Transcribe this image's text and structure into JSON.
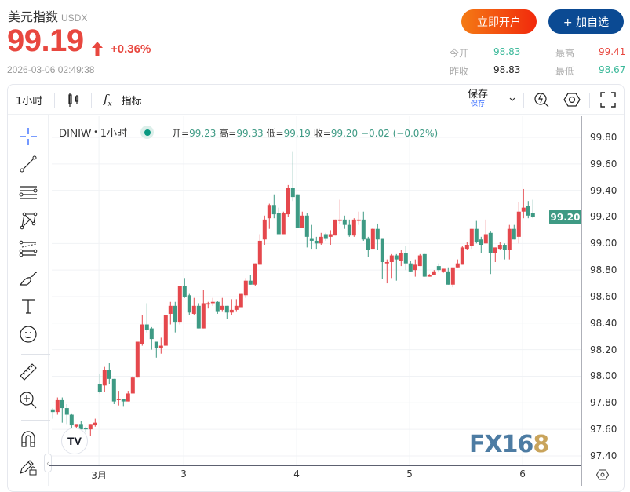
{
  "header": {
    "title": "美元指数",
    "symbol": "USDX",
    "price": "99.19",
    "direction": "up",
    "change_pct": "+0.36%",
    "timestamp": "2026-03-06 02:49:38"
  },
  "buttons": {
    "open_account": "立即开户",
    "add_watchlist": "+ 加自选"
  },
  "stats": {
    "open_label": "今开",
    "open": "98.83",
    "prev_close_label": "昨收",
    "prev_close": "98.83",
    "high_label": "最高",
    "high": "99.41",
    "low_label": "最低",
    "low": "98.67"
  },
  "toolbar": {
    "interval": "1小时",
    "chart_type_icon": "candles-icon",
    "indicators": "指标",
    "save": "保存",
    "save_sub": "保存"
  },
  "left_tools": [
    "crosshair-icon",
    "trend-line-icon",
    "horizontal-lines-icon",
    "pattern-icon",
    "fib-icon",
    "brush-icon",
    "text-icon",
    "emoji-icon",
    "ruler-icon",
    "zoom-in-icon",
    "magnet-icon",
    "lock-drawing-icon"
  ],
  "legend": {
    "symbol": "DINIW",
    "interval": "1小时",
    "open_label": "开=",
    "open": "99.23",
    "high_label": "高=",
    "high": "99.33",
    "low_label": "低=",
    "low": "99.19",
    "close_label": "收=",
    "close": "99.20",
    "change": "−0.02 (−0.02%)"
  },
  "colors": {
    "up": "#e5484d",
    "down": "#3e9a84",
    "price_up": "#e8473f",
    "accent_blue": "#0b4a93"
  },
  "watermark": {
    "text_a": "FX16",
    "text_b": "8"
  },
  "chart_data": {
    "type": "candlestick",
    "ylim": [
      97.4,
      99.8
    ],
    "y_ticks": [
      "99.80",
      "99.60",
      "99.40",
      "99.20",
      "99.00",
      "98.80",
      "98.60",
      "98.40",
      "98.20",
      "98.00",
      "97.80",
      "97.60",
      "97.40"
    ],
    "x_ticks": [
      "3月",
      "3",
      "4",
      "5",
      "6"
    ],
    "last_price": "99.20",
    "grid": true,
    "candles_ohlc": [
      [
        97.75,
        97.76,
        97.68,
        97.73
      ],
      [
        97.73,
        97.84,
        97.71,
        97.82
      ],
      [
        97.82,
        97.84,
        97.65,
        97.76
      ],
      [
        97.76,
        97.79,
        97.64,
        97.71
      ],
      [
        97.71,
        97.72,
        97.61,
        97.63
      ],
      [
        97.62,
        97.64,
        97.61,
        97.64
      ],
      [
        97.64,
        97.66,
        97.6,
        97.6
      ],
      [
        97.61,
        97.62,
        97.58,
        97.6
      ],
      [
        97.6,
        97.64,
        97.55,
        97.64
      ],
      [
        97.63,
        97.68,
        97.62,
        97.65
      ],
      [
        97.94,
        98.02,
        97.87,
        97.88
      ],
      [
        97.93,
        98.07,
        97.88,
        98.05
      ],
      [
        98.05,
        98.1,
        97.94,
        97.98
      ],
      [
        97.98,
        97.98,
        97.79,
        97.81
      ],
      [
        97.82,
        97.89,
        97.78,
        97.83
      ],
      [
        97.83,
        97.83,
        97.77,
        97.81
      ],
      [
        97.81,
        97.89,
        97.81,
        97.87
      ],
      [
        97.87,
        98.0,
        97.87,
        97.99
      ],
      [
        97.99,
        98.26,
        97.99,
        98.26
      ],
      [
        98.24,
        98.46,
        98.23,
        98.39
      ],
      [
        98.39,
        98.55,
        98.33,
        98.35
      ],
      [
        98.36,
        98.37,
        98.2,
        98.28
      ],
      [
        98.26,
        98.26,
        98.14,
        98.21
      ],
      [
        98.21,
        98.29,
        98.17,
        98.23
      ],
      [
        98.23,
        98.46,
        98.23,
        98.46
      ],
      [
        98.47,
        98.56,
        98.39,
        98.53
      ],
      [
        98.53,
        98.56,
        98.33,
        98.41
      ],
      [
        98.41,
        98.68,
        98.39,
        98.68
      ],
      [
        98.68,
        98.74,
        98.59,
        98.6
      ],
      [
        98.61,
        98.62,
        98.46,
        98.48
      ],
      [
        98.47,
        98.59,
        98.46,
        98.53
      ],
      [
        98.53,
        98.55,
        98.36,
        98.36
      ],
      [
        98.36,
        98.65,
        98.36,
        98.55
      ],
      [
        98.54,
        98.56,
        98.51,
        98.55
      ],
      [
        98.55,
        98.59,
        98.53,
        98.56
      ],
      [
        98.56,
        98.57,
        98.47,
        98.49
      ],
      [
        98.5,
        98.59,
        98.49,
        98.53
      ],
      [
        98.53,
        98.53,
        98.43,
        98.48
      ],
      [
        98.48,
        98.58,
        98.46,
        98.5
      ],
      [
        98.5,
        98.58,
        98.49,
        98.53
      ],
      [
        98.52,
        98.62,
        98.52,
        98.62
      ],
      [
        98.61,
        98.74,
        98.59,
        98.72
      ],
      [
        98.72,
        98.76,
        98.69,
        98.69
      ],
      [
        98.69,
        98.85,
        98.68,
        98.85
      ],
      [
        98.84,
        99.07,
        98.84,
        99.02
      ],
      [
        99.03,
        99.21,
        98.99,
        99.18
      ],
      [
        99.19,
        99.3,
        99.11,
        99.29
      ],
      [
        99.29,
        99.37,
        99.19,
        99.22
      ],
      [
        99.23,
        99.27,
        99.07,
        99.07
      ],
      [
        99.07,
        99.24,
        99.07,
        99.23
      ],
      [
        99.22,
        99.44,
        99.2,
        99.42
      ],
      [
        99.42,
        99.69,
        99.32,
        99.35
      ],
      [
        99.37,
        99.37,
        99.12,
        99.12
      ],
      [
        99.12,
        99.24,
        99.12,
        99.21
      ],
      [
        99.21,
        99.23,
        98.97,
        99.05
      ],
      [
        99.04,
        99.14,
        98.96,
        99.02
      ],
      [
        99.02,
        99.05,
        98.96,
        99.0
      ],
      [
        99.0,
        99.08,
        98.99,
        99.05
      ],
      [
        99.07,
        99.08,
        99.02,
        99.04
      ],
      [
        99.05,
        99.1,
        98.99,
        99.07
      ],
      [
        99.06,
        99.18,
        99.06,
        99.18
      ],
      [
        99.17,
        99.33,
        99.15,
        99.18
      ],
      [
        99.18,
        99.21,
        99.11,
        99.14
      ],
      [
        99.14,
        99.18,
        99.05,
        99.06
      ],
      [
        99.06,
        99.19,
        99.05,
        99.18
      ],
      [
        99.17,
        99.24,
        99.14,
        99.18
      ],
      [
        99.18,
        99.24,
        99.02,
        99.03
      ],
      [
        99.04,
        99.05,
        98.9,
        98.95
      ],
      [
        98.96,
        99.12,
        98.96,
        99.11
      ],
      [
        99.11,
        99.15,
        98.95,
        99.03
      ],
      [
        99.04,
        99.04,
        98.73,
        98.86
      ],
      [
        98.85,
        98.88,
        98.7,
        98.86
      ],
      [
        98.86,
        98.92,
        98.74,
        98.91
      ],
      [
        98.91,
        98.92,
        98.72,
        98.88
      ],
      [
        98.87,
        98.95,
        98.83,
        98.93
      ],
      [
        98.93,
        98.98,
        98.8,
        98.85
      ],
      [
        98.85,
        98.87,
        98.79,
        98.79
      ],
      [
        98.8,
        98.88,
        98.75,
        98.84
      ],
      [
        98.83,
        98.92,
        98.83,
        98.91
      ],
      [
        98.92,
        98.92,
        98.75,
        98.75
      ],
      [
        98.75,
        98.77,
        98.75,
        98.76
      ],
      [
        98.76,
        98.8,
        98.76,
        98.79
      ],
      [
        98.83,
        98.85,
        98.79,
        98.8
      ],
      [
        98.79,
        98.81,
        98.78,
        98.81
      ],
      [
        98.79,
        98.82,
        98.69,
        98.69
      ],
      [
        98.69,
        98.82,
        98.67,
        98.82
      ],
      [
        98.82,
        98.88,
        98.82,
        98.85
      ],
      [
        98.84,
        98.98,
        98.84,
        98.97
      ],
      [
        98.96,
        99.01,
        98.95,
        98.99
      ],
      [
        98.98,
        99.11,
        98.96,
        99.11
      ],
      [
        99.11,
        99.17,
        99.0,
        99.01
      ],
      [
        99.03,
        99.05,
        98.93,
        98.99
      ],
      [
        99.0,
        99.18,
        99.0,
        99.07
      ],
      [
        99.08,
        99.09,
        98.77,
        98.93
      ],
      [
        98.93,
        98.97,
        98.86,
        98.97
      ],
      [
        98.96,
        99.01,
        98.95,
        98.99
      ],
      [
        98.99,
        99.0,
        98.88,
        98.95
      ],
      [
        98.95,
        99.14,
        98.88,
        99.11
      ],
      [
        99.11,
        99.14,
        99.03,
        99.03
      ],
      [
        99.05,
        99.31,
        99.0,
        99.24
      ],
      [
        99.24,
        99.41,
        99.19,
        99.27
      ],
      [
        99.28,
        99.32,
        99.19,
        99.21
      ],
      [
        99.23,
        99.33,
        99.19,
        99.2
      ]
    ]
  }
}
